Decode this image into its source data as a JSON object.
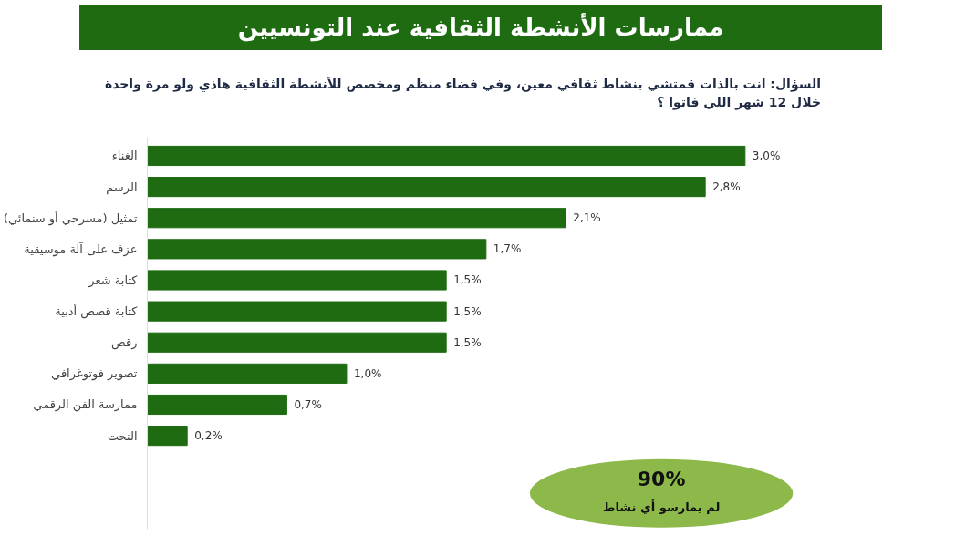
{
  "chart_data": {
    "type": "bar",
    "orientation": "horizontal",
    "title": "ممارسات الأنشطة الثقافية عند التونسيين",
    "subtitle": "السؤال: انت بالذات قمتشي بنشاط ثقافي معين، وفي فضاء منظم ومخصص للأنشطة الثقافية هاذي ولو مرة واحدة خلال 12 شهر اللي فاتوا ؟",
    "categories": [
      "الغناء",
      "الرسم",
      "تمثيل (مسرحي أو سنمائي)",
      "عزف على آلة موسيقية",
      "كتابة شعر",
      "كتابة قصص أدبية",
      "رقص",
      "تصوير فوتوغرافي",
      "ممارسة الفن الرقمي",
      "النحت"
    ],
    "values": [
      3.0,
      2.8,
      2.1,
      1.7,
      1.5,
      1.5,
      1.5,
      1.0,
      0.7,
      0.2
    ],
    "value_labels": [
      "3,0%",
      "2,8%",
      "2,1%",
      "1,7%",
      "1,5%",
      "1,5%",
      "1,5%",
      "1,0%",
      "0,7%",
      "0,2%"
    ],
    "color": "#1e6b12",
    "annotations": [
      "90%",
      "لم يمارسو أي نشاط"
    ],
    "grid": false
  }
}
